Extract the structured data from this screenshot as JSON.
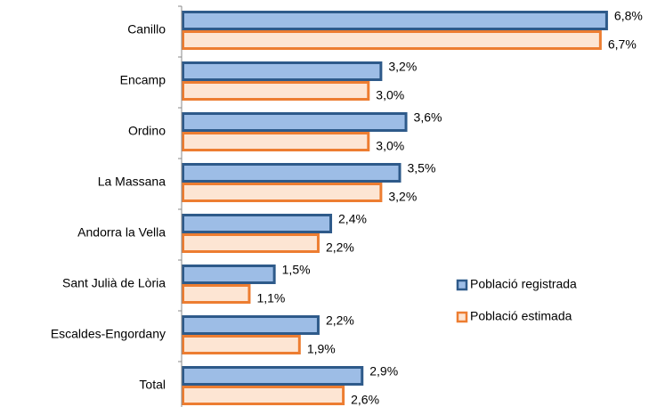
{
  "chart_data": {
    "type": "bar",
    "orientation": "horizontal",
    "categories": [
      "Canillo",
      "Encamp",
      "Ordino",
      "La Massana",
      "Andorra la Vella",
      "Sant Julià de Lòria",
      "Escaldes-Engordany",
      "Total"
    ],
    "series": [
      {
        "name": "Població registrada",
        "color": "#9dbde6",
        "edge_color": "#2e5a8a",
        "values": [
          6.8,
          3.2,
          3.6,
          3.5,
          2.4,
          1.5,
          2.2,
          2.9
        ],
        "value_labels": [
          "6,8%",
          "3,2%",
          "3,6%",
          "3,5%",
          "2,4%",
          "1,5%",
          "2,2%",
          "2,9%"
        ]
      },
      {
        "name": "Població estimada",
        "color": "#fde5d3",
        "edge_color": "#ed7d31",
        "values": [
          6.7,
          3.0,
          3.0,
          3.2,
          2.2,
          1.1,
          1.9,
          2.6
        ],
        "value_labels": [
          "6,7%",
          "3,0%",
          "3,0%",
          "3,2%",
          "2,2%",
          "1,1%",
          "1,9%",
          "2,6%"
        ]
      }
    ],
    "xlim": [
      0,
      7
    ],
    "legend": "right"
  }
}
